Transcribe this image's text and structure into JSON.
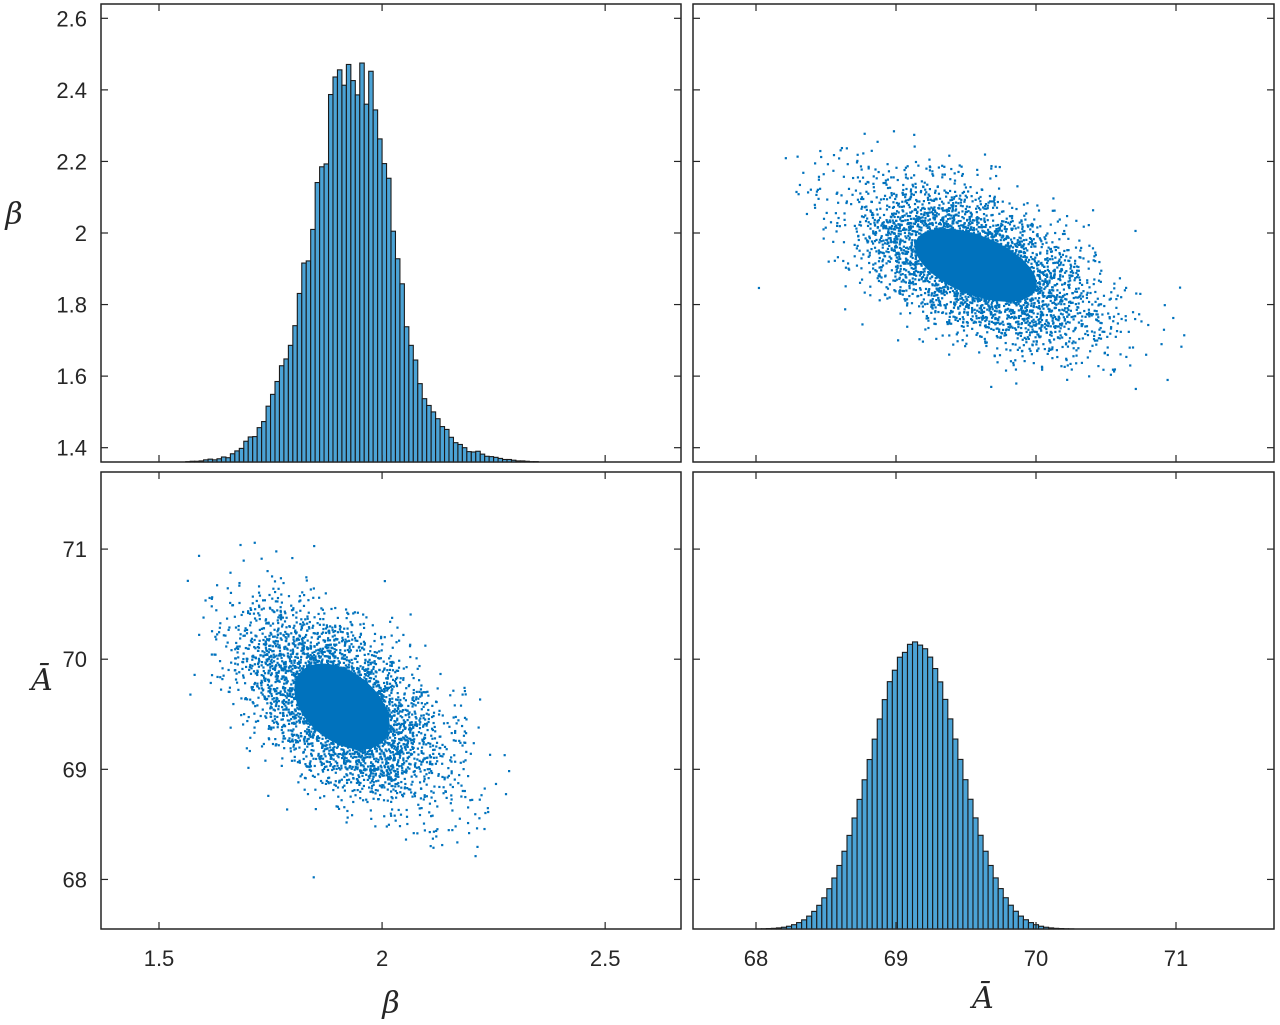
{
  "chart_data": [
    {
      "type": "bar",
      "panel": "top-left",
      "title": "",
      "xlabel": "",
      "ylabel": "β",
      "xlim": [
        1.37,
        2.67
      ],
      "ylim": [
        1.36,
        2.64
      ],
      "yticks": [
        "1.4",
        "1.6",
        "1.8",
        "2",
        "2.2",
        "2.4",
        "2.6"
      ],
      "bin_edges_start": 1.56,
      "bin_width": 0.01,
      "values": [
        1.361,
        1.362,
        1.362,
        1.363,
        1.366,
        1.368,
        1.366,
        1.369,
        1.374,
        1.372,
        1.383,
        1.391,
        1.398,
        1.418,
        1.43,
        1.431,
        1.456,
        1.473,
        1.516,
        1.549,
        1.585,
        1.629,
        1.648,
        1.686,
        1.741,
        1.831,
        1.916,
        1.922,
        2.01,
        2.141,
        2.185,
        2.193,
        2.387,
        2.436,
        2.456,
        2.413,
        2.471,
        2.426,
        2.386,
        2.475,
        2.36,
        2.452,
        2.344,
        2.263,
        2.194,
        2.153,
        2.005,
        1.928,
        1.858,
        1.738,
        1.686,
        1.645,
        1.579,
        1.537,
        1.518,
        1.5,
        1.481,
        1.459,
        1.451,
        1.429,
        1.414,
        1.409,
        1.4,
        1.389,
        1.388,
        1.39,
        1.382,
        1.376,
        1.375,
        1.373,
        1.37,
        1.367,
        1.367,
        1.365,
        1.363,
        1.363,
        1.362,
        1.361,
        1.361,
        1.36
      ]
    },
    {
      "type": "scatter",
      "panel": "top-right",
      "title": "",
      "xlabel": "",
      "ylabel": "",
      "xlim": [
        67.55,
        71.7
      ],
      "ylim": [
        1.36,
        2.64
      ],
      "x_center": 69.57,
      "y_center": 1.91,
      "correlation": -0.55
    },
    {
      "type": "scatter",
      "panel": "bottom-left",
      "title": "",
      "xlabel": "β",
      "ylabel": "Ā",
      "xlim": [
        1.37,
        2.67
      ],
      "ylim": [
        67.55,
        71.7
      ],
      "xticks": [
        "1.5",
        "2",
        "2.5"
      ],
      "yticks": [
        "68",
        "69",
        "70",
        "71"
      ],
      "x_center": 1.91,
      "y_center": 69.57,
      "correlation": -0.55
    },
    {
      "type": "bar",
      "panel": "bottom-right",
      "title": "",
      "xlabel": "Ā",
      "ylabel": "",
      "xlim": [
        67.55,
        71.7
      ],
      "ylim": [
        67.55,
        71.7
      ],
      "xticks": [
        "68",
        "69",
        "70",
        "71"
      ],
      "bin_edges_start": 67.93,
      "bin_width": 0.036,
      "values": [
        67.55,
        67.55,
        67.551,
        67.552,
        67.554,
        67.556,
        67.56,
        67.566,
        67.575,
        67.589,
        67.608,
        67.633,
        67.667,
        67.71,
        67.765,
        67.833,
        67.916,
        68.013,
        68.127,
        68.256,
        68.4,
        68.558,
        68.727,
        68.905,
        69.089,
        69.274,
        69.457,
        69.633,
        69.796,
        69.9,
        70.018,
        70.062,
        70.135,
        70.157,
        70.128,
        70.095,
        70.019,
        69.915,
        69.794,
        69.635,
        69.458,
        69.275,
        69.09,
        68.906,
        68.728,
        68.559,
        68.401,
        68.256,
        68.127,
        68.014,
        67.917,
        67.834,
        67.766,
        67.711,
        67.667,
        67.634,
        67.608,
        67.589,
        67.575,
        67.566,
        67.56,
        67.556,
        67.554,
        67.552,
        67.551,
        67.55,
        67.55,
        67.55
      ]
    }
  ],
  "colors": {
    "scatter": "#0072bd",
    "bar_fill": "#4ba3d6",
    "bar_edge": "#1a1a1a",
    "axes": "#262626"
  }
}
